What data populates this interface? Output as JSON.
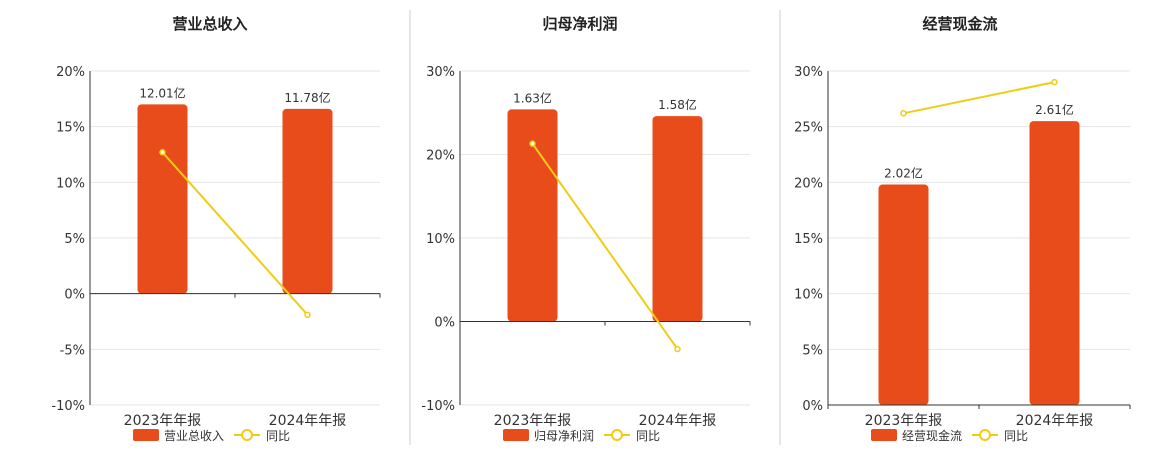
{
  "colors": {
    "bar": "#e84c1a",
    "line": "#f0cc14"
  },
  "chart_data": [
    {
      "type": "bar",
      "title": "营业总收入",
      "categories": [
        "2023年年报",
        "2024年年报"
      ],
      "series": [
        {
          "name": "营业总收入",
          "kind": "bar",
          "values": [
            17.0,
            16.6
          ],
          "labels": [
            "12.01亿",
            "11.78亿"
          ]
        },
        {
          "name": "同比",
          "kind": "line",
          "values": [
            12.7,
            -1.9
          ]
        }
      ],
      "ylim": [
        -10,
        20
      ],
      "yticks": [
        20,
        15,
        10,
        5,
        0,
        -5,
        -10
      ],
      "ytick_labels": [
        "20%",
        "15%",
        "10%",
        "5%",
        "0%",
        "-5%",
        "-10%"
      ],
      "grid": true,
      "legend_placement": "bottom"
    },
    {
      "type": "bar",
      "title": "归母净利润",
      "categories": [
        "2023年年报",
        "2024年年报"
      ],
      "series": [
        {
          "name": "归母净利润",
          "kind": "bar",
          "values": [
            25.4,
            24.6
          ],
          "labels": [
            "1.63亿",
            "1.58亿"
          ]
        },
        {
          "name": "同比",
          "kind": "line",
          "values": [
            21.3,
            -3.3
          ]
        }
      ],
      "ylim": [
        -10,
        30
      ],
      "yticks": [
        30,
        20,
        10,
        0,
        -10
      ],
      "ytick_labels": [
        "30%",
        "20%",
        "10%",
        "0%",
        "-10%"
      ],
      "grid": true,
      "legend_placement": "bottom"
    },
    {
      "type": "bar",
      "title": "经营现金流",
      "categories": [
        "2023年年报",
        "2024年年报"
      ],
      "series": [
        {
          "name": "经营现金流",
          "kind": "bar",
          "values": [
            19.8,
            25.5
          ],
          "labels": [
            "2.02亿",
            "2.61亿"
          ]
        },
        {
          "name": "同比",
          "kind": "line",
          "values": [
            26.2,
            29.0
          ]
        }
      ],
      "ylim": [
        0,
        30
      ],
      "yticks": [
        30,
        25,
        20,
        15,
        10,
        5,
        0
      ],
      "ytick_labels": [
        "30%",
        "25%",
        "20%",
        "15%",
        "10%",
        "5%",
        "0%"
      ],
      "grid": true,
      "legend_placement": "bottom"
    }
  ]
}
